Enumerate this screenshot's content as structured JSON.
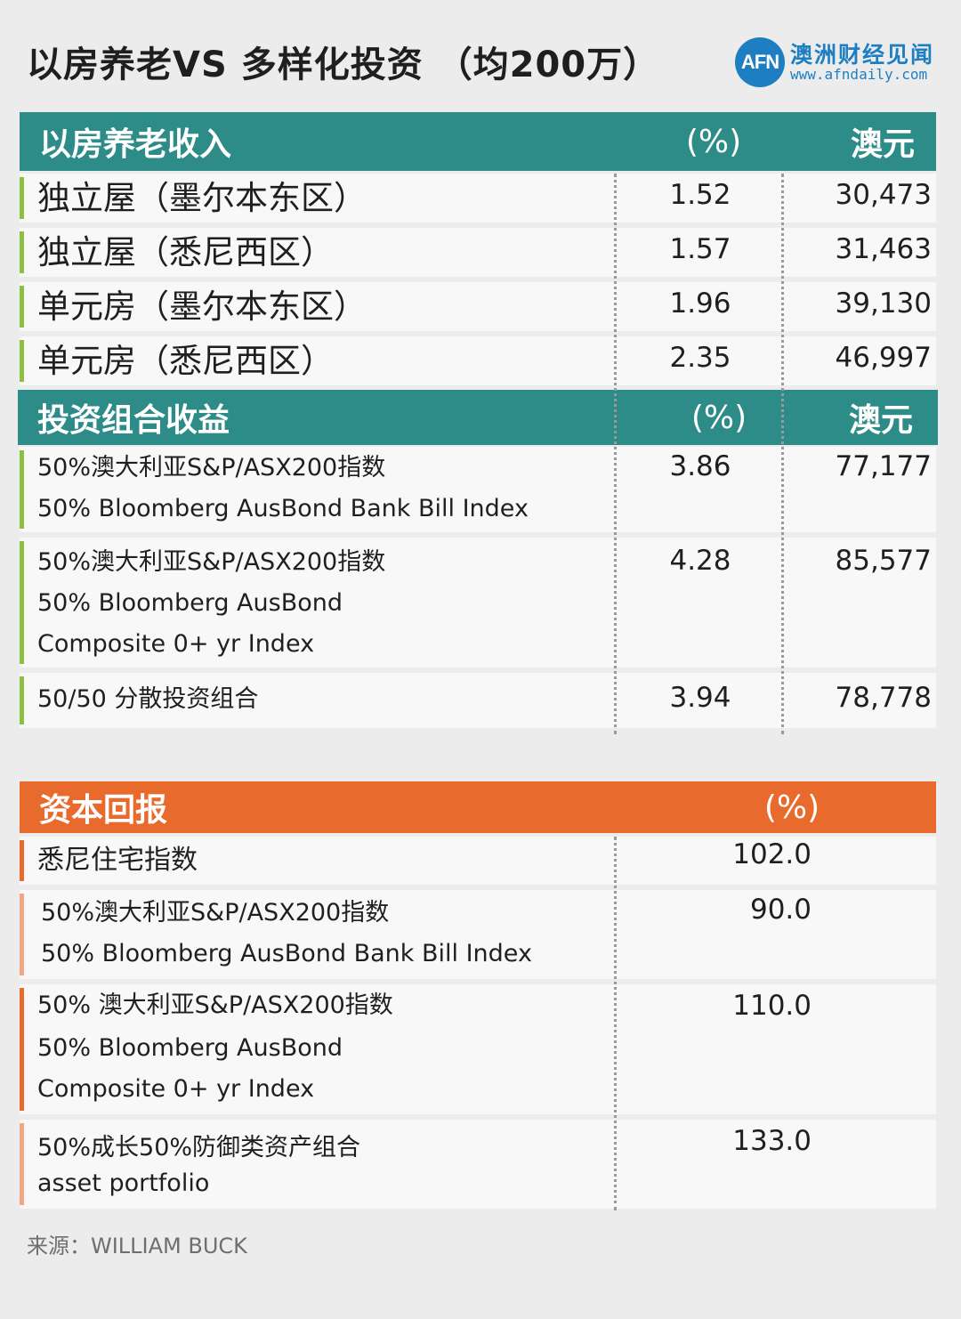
{
  "title": "以房养老VS 多样化投资 （均200万）",
  "logo": {
    "mark": "AFN",
    "name": "澳洲财经见闻",
    "url": "www.afndaily.com"
  },
  "section1": {
    "header": "以房养老收入",
    "col_pct": "(%)",
    "col_aud": "澳元",
    "rows": [
      {
        "label": "独立屋（墨尔本东区）",
        "pct": "1.52",
        "aud": "30,473"
      },
      {
        "label": "独立屋（悉尼西区）",
        "pct": "1.57",
        "aud": "31,463"
      },
      {
        "label": "单元房（墨尔本东区）",
        "pct": "1.96",
        "aud": "39,130"
      },
      {
        "label": "单元房（悉尼西区）",
        "pct": "2.35",
        "aud": "46,997"
      }
    ]
  },
  "section2": {
    "header": "投资组合收益",
    "col_pct": "(%)",
    "col_aud": "澳元",
    "rows": [
      {
        "lines": [
          "50%澳大利亚S&P/ASX200指数",
          "50% Bloomberg AusBond Bank Bill Index"
        ],
        "pct": "3.86",
        "aud": "77,177"
      },
      {
        "lines": [
          "50%澳大利亚S&P/ASX200指数",
          "50% Bloomberg AusBond",
          "Composite 0+ yr Index"
        ],
        "pct": "4.28",
        "aud": "85,577"
      },
      {
        "lines": [
          "50/50 分散投资组合"
        ],
        "pct": "3.94",
        "aud": "78,778"
      }
    ]
  },
  "section3": {
    "header": "资本回报",
    "col_pct": "(%)",
    "rows": [
      {
        "lines": [
          "悉尼住宅指数"
        ],
        "value": "102.0"
      },
      {
        "lines": [
          "50%澳大利亚S&P/ASX200指数",
          "50% Bloomberg AusBond Bank Bill Index"
        ],
        "value": "90.0"
      },
      {
        "lines": [
          "50% 澳大利亚S&P/ASX200指数",
          "50% Bloomberg AusBond",
          "Composite 0+ yr Index"
        ],
        "value": "110.0"
      },
      {
        "lines": [
          "50%成长50%防御类资产组合",
          "asset portfolio"
        ],
        "value": "133.0"
      }
    ]
  },
  "source": "来源：WILLIAM BUCK",
  "colors": {
    "teal": "#2d8b88",
    "orange": "#e96a2d",
    "green": "#8bbf3f",
    "light_orange": "#f2a683",
    "logo_blue": "#1d7fc2"
  }
}
